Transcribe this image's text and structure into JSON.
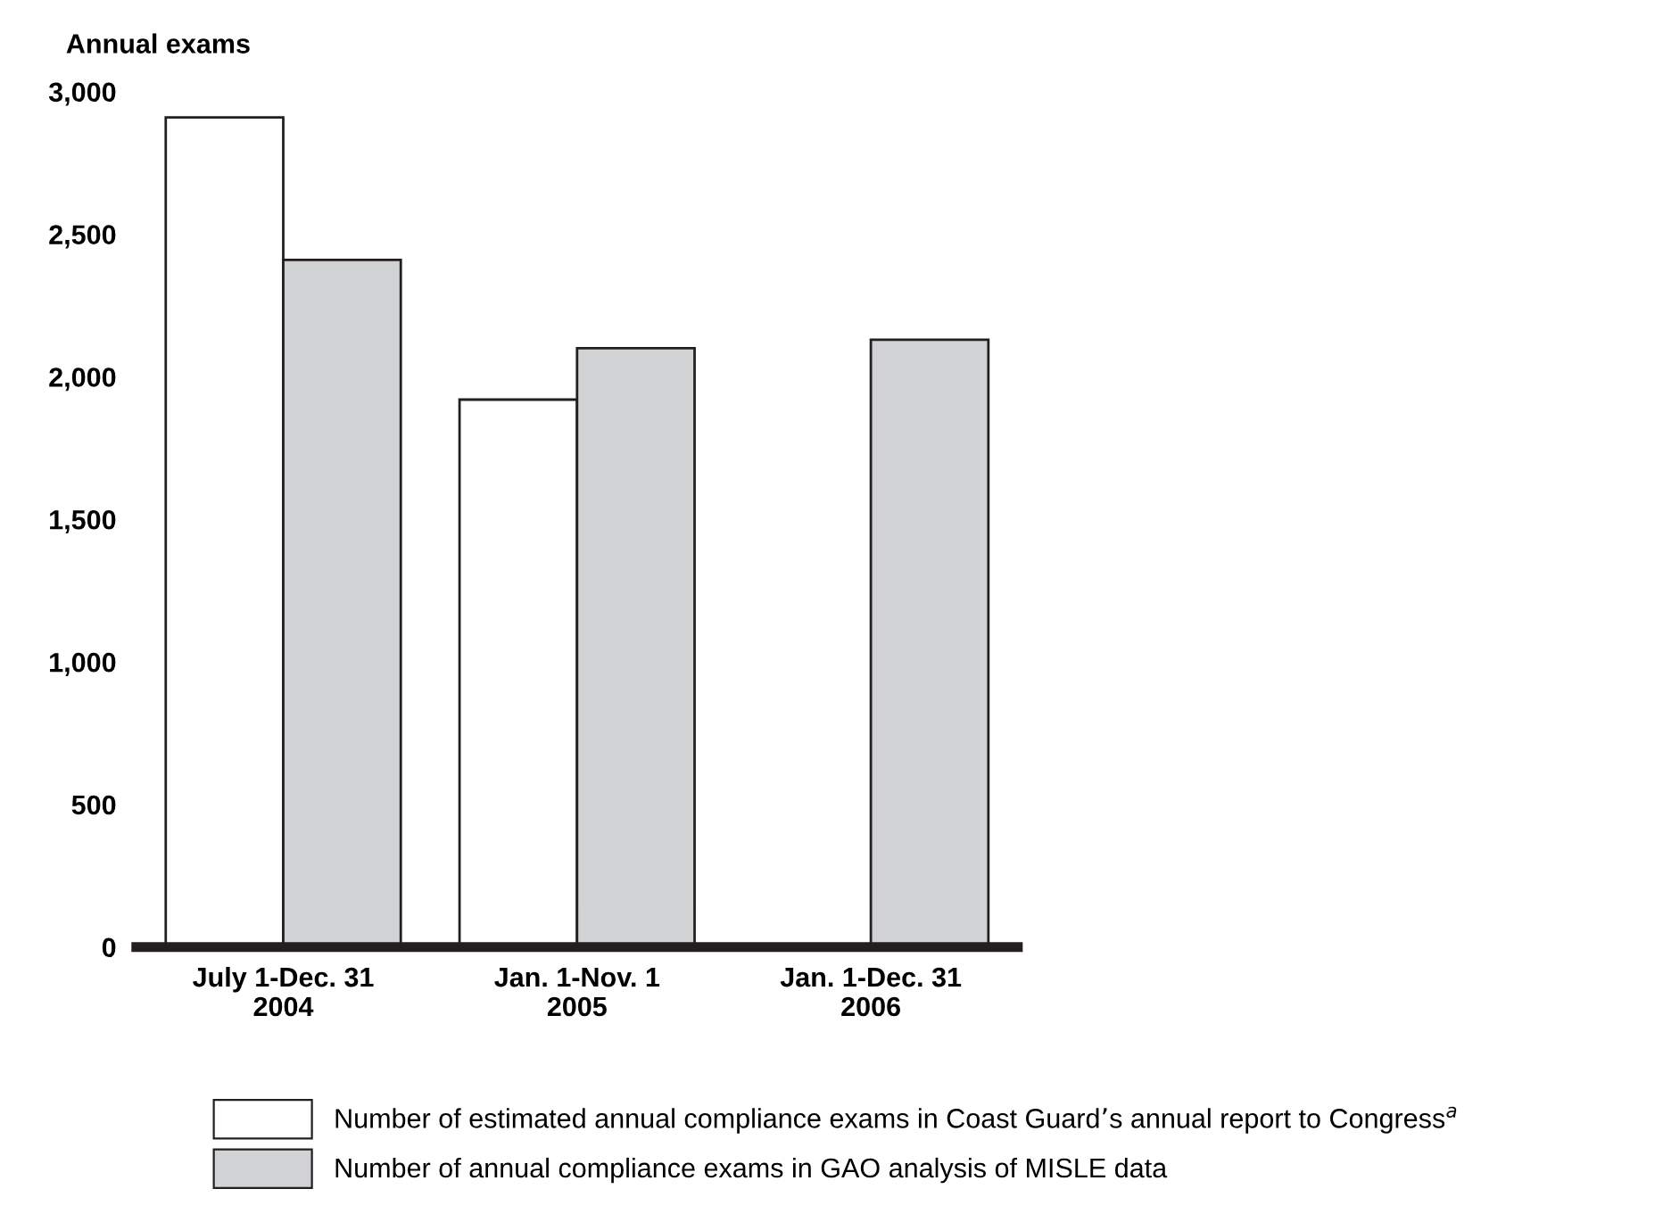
{
  "chart_data": {
    "type": "bar",
    "ylabel": "Annual exams",
    "categories": [
      "July 1-Dec. 31\n2004",
      "Jan. 1-Nov. 1\n2005",
      "Jan. 1-Dec. 31\n2006"
    ],
    "series": [
      {
        "name": "Number of estimated annual compliance exams in Coast Guard’s annual report to Congress$^{a}$",
        "color": "#ffffff",
        "values": [
          2910,
          1920,
          null
        ]
      },
      {
        "name": "Number of annual compliance exams in GAO analysis of MISLE data",
        "color": "#d1d2d4",
        "values": [
          2410,
          2100,
          2130
        ]
      }
    ],
    "ylim": [
      0,
      3000
    ],
    "yticks": [
      0,
      {
        "value": 500,
        "label": "500"
      },
      {
        "value": 1000,
        "label": "1,000"
      },
      {
        "value": 1500,
        "label": "1,500"
      },
      {
        "value": 2000,
        "label": "2,000"
      },
      {
        "value": 2500,
        "label": "2,500"
      },
      {
        "value": 3000,
        "label": "3,000"
      }
    ],
    "grid": false,
    "legend": "bottom"
  }
}
